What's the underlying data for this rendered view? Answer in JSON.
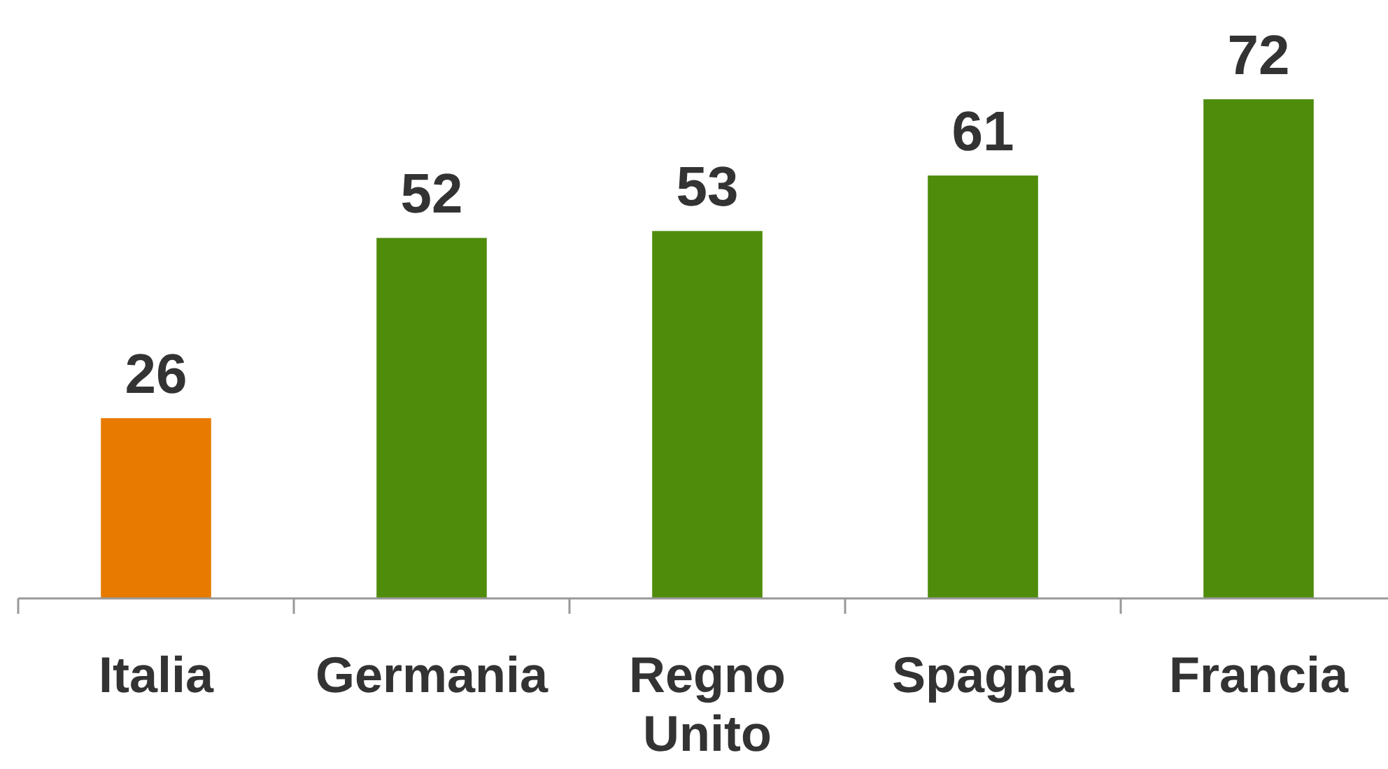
{
  "chart_data": {
    "type": "bar",
    "categories": [
      "Italia",
      "Germania",
      "Regno Unito",
      "Spagna",
      "Francia"
    ],
    "values": [
      26,
      52,
      53,
      61,
      72
    ],
    "colors": [
      "#e87a00",
      "#4f8c0c",
      "#4f8c0c",
      "#4f8c0c",
      "#4f8c0c"
    ],
    "data_labels": true
  }
}
